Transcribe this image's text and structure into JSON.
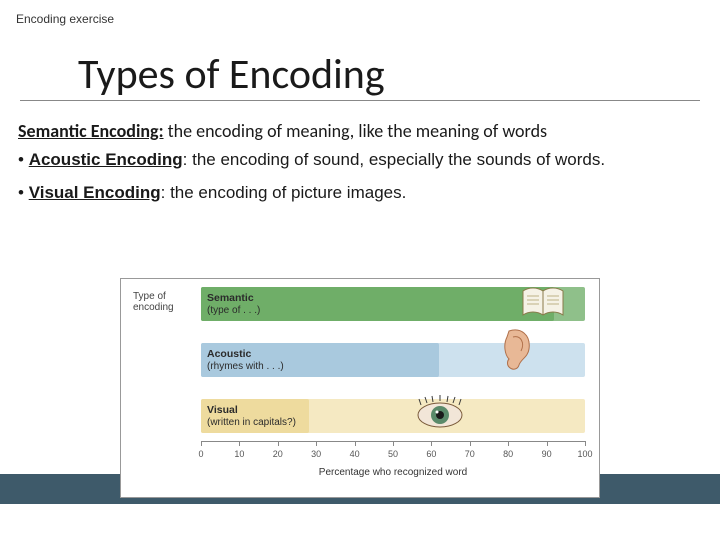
{
  "header_label": "Encoding exercise",
  "title": "Types of Encoding",
  "para_semantic": {
    "lead": "Semantic Encoding:",
    "rest": " the encoding of meaning, like the meaning of words"
  },
  "para_acoustic": {
    "bullet": "• ",
    "lead": "Acoustic Encoding",
    "rest": ": the encoding of sound, especially the sounds of words."
  },
  "para_visual": {
    "bullet": "• ",
    "lead": "Visual Encoding",
    "rest": ": the encoding of picture images."
  },
  "chart": {
    "type_label_1": "Type of",
    "type_label_2": "encoding",
    "rows": [
      {
        "title": "Semantic",
        "sub": "(type of . . .)",
        "bar_color": "#6fae68",
        "bg_color": "#8fc08a",
        "value": 92,
        "icon": "book"
      },
      {
        "title": "Acoustic",
        "sub": "(rhymes with . . .)",
        "bar_color": "#a9c9de",
        "bg_color": "#cde1ee",
        "value": 62,
        "icon": "ear"
      },
      {
        "title": "Visual",
        "sub": "(written in capitals?)",
        "bar_color": "#eedb9e",
        "bg_color": "#f5e9c2",
        "value": 28,
        "icon": "eye"
      }
    ],
    "x_ticks": [
      0,
      10,
      20,
      30,
      40,
      50,
      60,
      70,
      80,
      90,
      100
    ],
    "x_title": "Percentage who recognized word",
    "colors": {
      "border": "#999999",
      "axis": "#888888",
      "background": "#ffffff"
    }
  },
  "footer_bar_color": "#3e5a6a"
}
